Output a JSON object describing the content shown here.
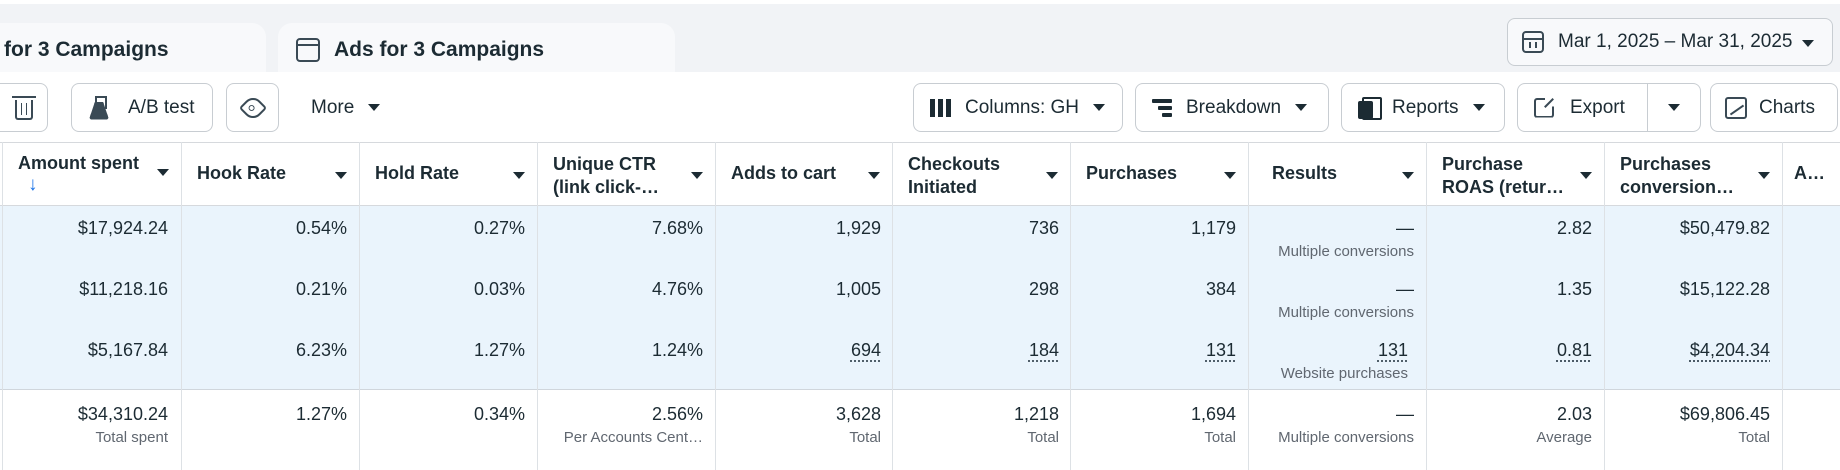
{
  "tabs": {
    "campaigns_label": "for 3 Campaigns",
    "ads_label": "Ads for 3 Campaigns"
  },
  "date_range": "Mar 1, 2025 – Mar 31, 2025",
  "toolbar": {
    "ab_test_label": "A/B test",
    "more_label": "More",
    "columns_label": "Columns: GH",
    "breakdown_label": "Breakdown",
    "reports_label": "Reports",
    "export_label": "Export",
    "charts_label": "Charts"
  },
  "table": {
    "headers": {
      "amount_spent": "Amount spent",
      "hook_rate": "Hook Rate",
      "hold_rate": "Hold Rate",
      "unique_ctr_1": "Unique CTR",
      "unique_ctr_2": "(link click-…",
      "adds_to_cart": "Adds to cart",
      "checkouts_1": "Checkouts",
      "checkouts_2": "Initiated",
      "purchases": "Purchases",
      "results": "Results",
      "roas_1": "Purchase",
      "roas_2": "ROAS (retur…",
      "pcv_1": "Purchases",
      "pcv_2": "conversion…",
      "aov": "AOV"
    },
    "sort_indicator": "↓",
    "rows": [
      {
        "amount_spent": "$17,924.24",
        "hook_rate": "0.54%",
        "hold_rate": "0.27%",
        "unique_ctr": "7.68%",
        "adds_to_cart": "1,929",
        "checkouts": "736",
        "purchases": "1,179",
        "results": "—",
        "results_sub": "Multiple conversions",
        "roas": "2.82",
        "pcv": "$50,479.82"
      },
      {
        "amount_spent": "$11,218.16",
        "hook_rate": "0.21%",
        "hold_rate": "0.03%",
        "unique_ctr": "4.76%",
        "adds_to_cart": "1,005",
        "checkouts": "298",
        "purchases": "384",
        "results": "—",
        "results_sub": "Multiple conversions",
        "roas": "1.35",
        "pcv": "$15,122.28"
      },
      {
        "amount_spent": "$5,167.84",
        "hook_rate": "6.23%",
        "hold_rate": "1.27%",
        "unique_ctr": "1.24%",
        "adds_to_cart": "694",
        "checkouts": "184",
        "purchases": "131",
        "results": "131",
        "results_sub": "Website purchases",
        "roas": "0.81",
        "pcv": "$4,204.34"
      }
    ],
    "totals": {
      "amount_spent": "$34,310.24",
      "amount_spent_sub": "Total spent",
      "hook_rate": "1.27%",
      "hold_rate": "0.34%",
      "unique_ctr": "2.56%",
      "unique_ctr_sub": "Per Accounts Cent…",
      "adds_to_cart": "3,628",
      "adds_to_cart_sub": "Total",
      "checkouts": "1,218",
      "checkouts_sub": "Total",
      "purchases": "1,694",
      "purchases_sub": "Total",
      "results": "—",
      "results_sub": "Multiple conversions",
      "roas": "2.03",
      "roas_sub": "Average",
      "pcv": "$69,806.45",
      "pcv_sub": "Total"
    }
  }
}
